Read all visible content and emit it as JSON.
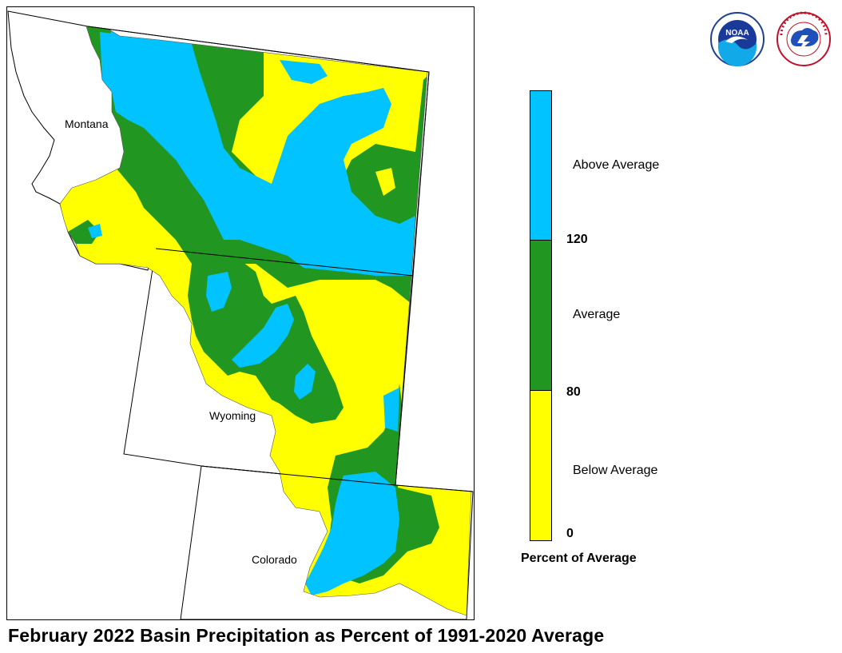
{
  "caption": "February 2022 Basin Precipitation as Percent of 1991-2020 Average",
  "states": {
    "montana": "Montana",
    "wyoming": "Wyoming",
    "colorado": "Colorado"
  },
  "legend": {
    "title": "Percent of Average",
    "categories": [
      {
        "label": "Above Average",
        "range": "above 120",
        "color": "#00c3ff"
      },
      {
        "label": "Average",
        "range": "80-120",
        "color": "#219621"
      },
      {
        "label": "Below Average",
        "range": "0-80",
        "color": "#ffff00"
      }
    ],
    "ticks": [
      "120",
      "80",
      "0"
    ]
  },
  "colors": {
    "above": "#00c3ff",
    "average": "#219621",
    "below": "#ffff00",
    "outline": "#000000"
  },
  "logos": {
    "noaa": {
      "text": "NOAA",
      "icon": "noaa-logo"
    },
    "nws": {
      "text": "NATIONAL WEATHER SERVICE",
      "icon": "nws-logo"
    }
  }
}
